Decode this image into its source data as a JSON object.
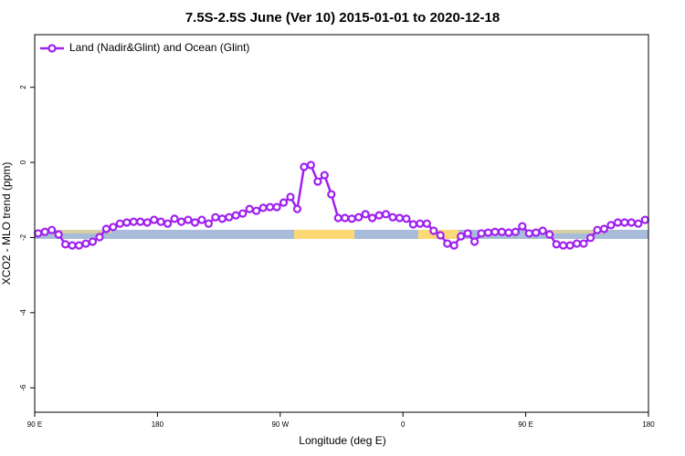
{
  "chart_data": {
    "type": "line",
    "title": "7.5S-2.5S June (Ver 10)   2015-01-01 to 2020-12-18",
    "xlabel": "Longitude (deg E)",
    "ylabel": "XCO2 - MLO trend (ppm)",
    "x": [
      92.5,
      97.5,
      102.5,
      107.5,
      112.5,
      117.5,
      122.5,
      127.5,
      132.5,
      137.5,
      142.5,
      147.5,
      152.5,
      157.5,
      162.5,
      167.5,
      172.5,
      177.5,
      182.5,
      187.5,
      192.5,
      197.5,
      202.5,
      207.5,
      212.5,
      217.5,
      222.5,
      227.5,
      232.5,
      237.5,
      242.5,
      247.5,
      252.5,
      257.5,
      262.5,
      267.5,
      272.5,
      277.5,
      282.5,
      287.5,
      292.5,
      297.5,
      302.5,
      307.5,
      312.5,
      317.5,
      322.5,
      327.5,
      332.5,
      337.5,
      342.5,
      347.5,
      352.5,
      357.5,
      362.5,
      367.5,
      372.5,
      377.5,
      382.5,
      387.5,
      392.5,
      397.5,
      402.5,
      407.5,
      412.5,
      417.5,
      422.5,
      427.5,
      432.5,
      437.5,
      442.5,
      447.5,
      452.5,
      457.5,
      462.5,
      467.5,
      472.5,
      477.5,
      482.5,
      487.5,
      492.5,
      497.5,
      502.5,
      507.5,
      512.5,
      517.5,
      522.5,
      527.5,
      532.5,
      537.5
    ],
    "series": [
      {
        "name": "Land (Nadir&Glint) and Ocean (Glint)",
        "color": "#a020f0",
        "values": [
          -1.89,
          -1.85,
          -1.8,
          -1.92,
          -2.18,
          -2.21,
          -2.21,
          -2.16,
          -2.11,
          -1.99,
          -1.77,
          -1.72,
          -1.63,
          -1.6,
          -1.58,
          -1.58,
          -1.6,
          -1.53,
          -1.58,
          -1.63,
          -1.5,
          -1.58,
          -1.53,
          -1.6,
          -1.53,
          -1.63,
          -1.46,
          -1.5,
          -1.46,
          -1.41,
          -1.36,
          -1.24,
          -1.29,
          -1.21,
          -1.19,
          -1.19,
          -1.07,
          -0.92,
          -1.24,
          -0.12,
          -0.07,
          -0.51,
          -0.34,
          -0.85,
          -1.48,
          -1.48,
          -1.5,
          -1.46,
          -1.38,
          -1.48,
          -1.41,
          -1.38,
          -1.46,
          -1.48,
          -1.5,
          -1.65,
          -1.63,
          -1.63,
          -1.82,
          -1.94,
          -2.16,
          -2.21,
          -1.97,
          -1.89,
          -2.11,
          -1.89,
          -1.87,
          -1.85,
          -1.85,
          -1.87,
          -1.85,
          -1.7,
          -1.89,
          -1.87,
          -1.82,
          -1.92,
          -2.18,
          -2.21,
          -2.21,
          -2.16,
          -2.16,
          -2.01,
          -1.8,
          -1.77,
          -1.67,
          -1.6,
          -1.6,
          -1.6,
          -1.63,
          -1.53
        ]
      }
    ],
    "xlim": [
      90,
      540
    ],
    "xticks": [
      {
        "value": 90,
        "label": "90 E"
      },
      180,
      {
        "value": 270,
        "label": "90 W"
      },
      {
        "value": 360,
        "label": "0"
      },
      {
        "value": 450,
        "label": "90 E"
      },
      {
        "value": 540,
        "label": "180"
      }
    ],
    "ylim": [
      -6.65,
      3.4
    ],
    "yticks": [
      -6,
      -4,
      -2,
      0,
      2
    ],
    "legend": "top-left"
  }
}
